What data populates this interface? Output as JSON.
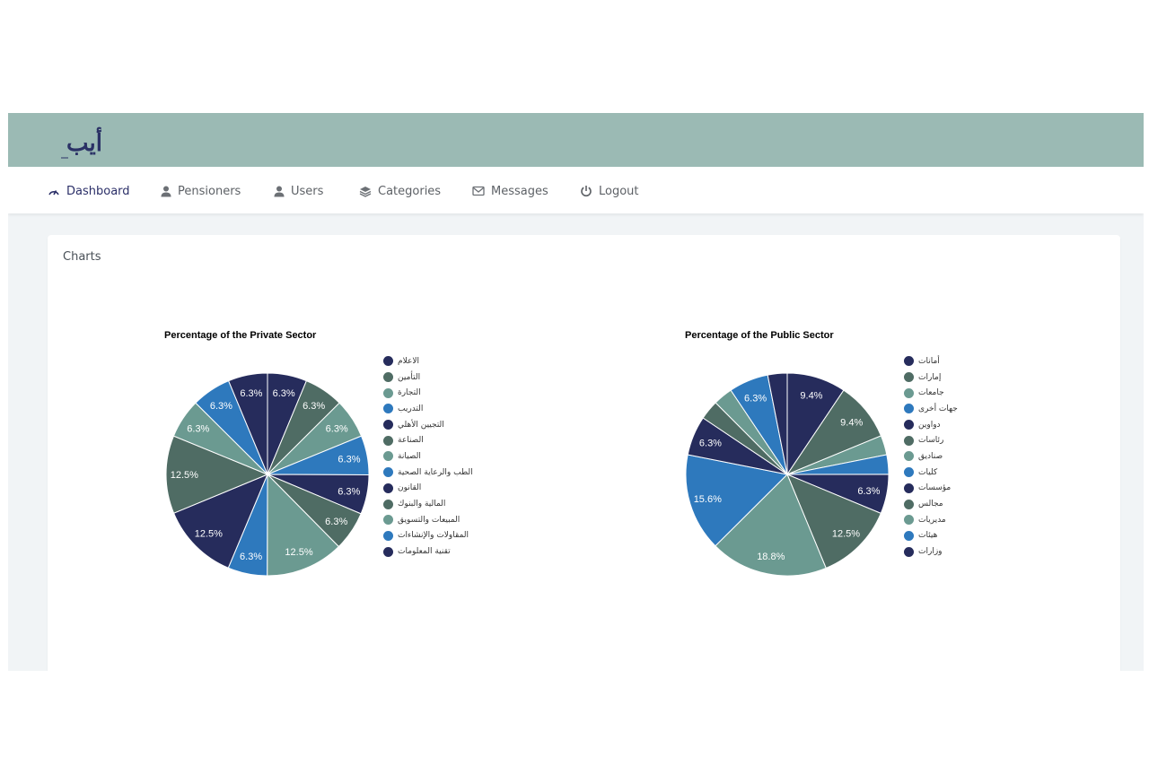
{
  "brand": {
    "logo_text": "أيب"
  },
  "nav": [
    {
      "label": "Dashboard",
      "icon": "dashboard-gauge-icon",
      "active": true
    },
    {
      "label": "Pensioners",
      "icon": "user-icon"
    },
    {
      "label": "Users",
      "icon": "user-icon"
    },
    {
      "label": "Categories",
      "icon": "layers-icon"
    },
    {
      "label": "Messages",
      "icon": "envelope-icon"
    },
    {
      "label": "Logout",
      "icon": "power-icon"
    }
  ],
  "card": {
    "title": "Charts"
  },
  "colors": {
    "topbar": "#9bbab4",
    "navy": "#262c5c",
    "dark_teal": "#4f6c64",
    "teal": "#6b9a91",
    "blue": "#2e79bd",
    "active_nav": "#2b2f68"
  },
  "chart_data": [
    {
      "type": "pie",
      "title": "Percentage of the Private Sector",
      "legend_position": "right",
      "categories": [
        "الاعلام",
        "التأمين",
        "التجارة",
        "التدريب",
        "التجيين الأهلي",
        "الصناعة",
        "الصيانة",
        "الطب والرعاية الصحية",
        "القانون",
        "المالية والبنوك",
        "المبيعات والتسويق",
        "المقاولات والإنشاءات",
        "تقنية المعلومات"
      ],
      "values": [
        6.3,
        6.3,
        6.3,
        6.3,
        6.3,
        6.3,
        12.5,
        6.3,
        12.5,
        12.5,
        6.3,
        6.3,
        6.3
      ],
      "data_labels": [
        "6.3%",
        "6.3%",
        "6.3%",
        "6.3%",
        "6.3%",
        "6.3%",
        "12.5%",
        "6.3%",
        "12.5%",
        "12.5%",
        "6.3%",
        "6.3%",
        "6.3%"
      ],
      "slice_colors": [
        "#262c5c",
        "#4f6c64",
        "#6b9a91",
        "#2e79bd",
        "#262c5c",
        "#4f6c64",
        "#6b9a91",
        "#2e79bd",
        "#262c5c",
        "#4f6c64",
        "#6b9a91",
        "#2e79bd",
        "#262c5c"
      ]
    },
    {
      "type": "pie",
      "title": "Percentage of the Public Sector",
      "legend_position": "right",
      "categories": [
        "أمانات",
        "إمارات",
        "جامعات",
        "جهات أخرى",
        "دواوين",
        "رئاسات",
        "صناديق",
        "كليات",
        "مؤسسات",
        "مجالس",
        "مديريات",
        "هيئات",
        "وزارات"
      ],
      "values": [
        9.4,
        9.4,
        3.1,
        3.1,
        6.3,
        12.5,
        18.8,
        15.6,
        6.3,
        3.1,
        3.1,
        6.3,
        3.1
      ],
      "data_labels": [
        "9.4%",
        "9.4%",
        "",
        "",
        "6.3%",
        "12.5%",
        "18.8%",
        "15.6%",
        "6.3%",
        "",
        "",
        "6.3%",
        ""
      ],
      "slice_colors": [
        "#262c5c",
        "#4f6c64",
        "#6b9a91",
        "#2e79bd",
        "#262c5c",
        "#4f6c64",
        "#6b9a91",
        "#2e79bd",
        "#262c5c",
        "#4f6c64",
        "#6b9a91",
        "#2e79bd",
        "#262c5c"
      ]
    }
  ]
}
